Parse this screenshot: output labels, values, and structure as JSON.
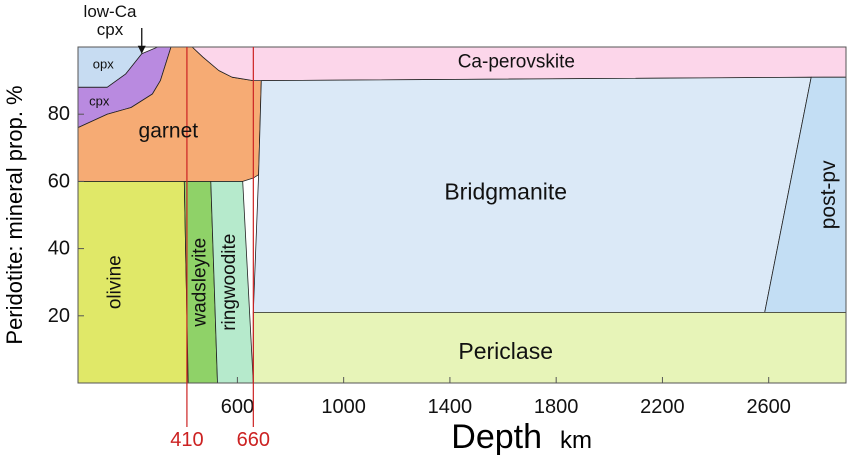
{
  "chart_data": {
    "type": "area",
    "title": "",
    "xlabel": "Depth",
    "xlabel_unit": "km",
    "ylabel": "Peridotite: mineral prop. %",
    "xlim": [
      0,
      2891
    ],
    "ylim": [
      0,
      100
    ],
    "x_ticks": [
      600,
      1000,
      1400,
      1800,
      2200,
      2600
    ],
    "y_ticks": [
      20,
      40,
      60,
      80
    ],
    "grid": false,
    "discontinuities": [
      {
        "depth": 410,
        "label": "410",
        "color": "#cc2222"
      },
      {
        "depth": 660,
        "label": "660",
        "color": "#cc2222"
      }
    ],
    "phases": [
      {
        "name": "olivine",
        "color": "#e0e868",
        "polygon": [
          [
            0,
            0
          ],
          [
            0,
            60
          ],
          [
            400,
            60
          ],
          [
            415,
            0
          ]
        ],
        "label_at": [
          140,
          30
        ],
        "label_rotation": -90,
        "label_size": 19
      },
      {
        "name": "wadsleyite",
        "color": "#8fd268",
        "polygon": [
          [
            415,
            0
          ],
          [
            400,
            60
          ],
          [
            500,
            60
          ],
          [
            525,
            0
          ]
        ],
        "label_at": [
          460,
          30
        ],
        "label_rotation": -90,
        "label_size": 19
      },
      {
        "name": "ringwoodite",
        "color": "#b6eacc",
        "polygon": [
          [
            525,
            0
          ],
          [
            500,
            60
          ],
          [
            620,
            60
          ],
          [
            660,
            0
          ]
        ],
        "label_at": [
          570,
          30
        ],
        "label_rotation": -90,
        "label_size": 19
      },
      {
        "name": "opx",
        "color": "#c7dcf2",
        "polygon": [
          [
            0,
            88
          ],
          [
            0,
            100
          ],
          [
            240,
            100
          ],
          [
            240,
            98
          ],
          [
            180,
            92
          ],
          [
            110,
            88
          ]
        ],
        "label_at": [
          95,
          95
        ],
        "label_rotation": 0,
        "label_size": 13
      },
      {
        "name": "cpx",
        "color": "#b98ae0",
        "polygon": [
          [
            0,
            76
          ],
          [
            0,
            88
          ],
          [
            110,
            88
          ],
          [
            180,
            92
          ],
          [
            240,
            98
          ],
          [
            300,
            100
          ],
          [
            350,
            100
          ],
          [
            310,
            90
          ],
          [
            280,
            86
          ],
          [
            200,
            82
          ],
          [
            110,
            80
          ]
        ],
        "label_at": [
          80,
          84
        ],
        "label_rotation": 0,
        "label_size": 13
      },
      {
        "name": "garnet",
        "color": "#f6ab74",
        "polygon": [
          [
            0,
            60
          ],
          [
            0,
            76
          ],
          [
            110,
            80
          ],
          [
            200,
            82
          ],
          [
            280,
            86
          ],
          [
            310,
            90
          ],
          [
            350,
            100
          ],
          [
            430,
            100
          ],
          [
            470,
            97
          ],
          [
            530,
            93
          ],
          [
            580,
            91
          ],
          [
            660,
            90
          ],
          [
            690,
            90
          ],
          [
            680,
            62
          ],
          [
            660,
            61
          ],
          [
            620,
            60
          ]
        ],
        "label_at": [
          340,
          75
        ],
        "label_rotation": 0,
        "label_size": 21
      },
      {
        "name": "Ca-perovskite",
        "color": "#fcd6ea",
        "polygon": [
          [
            430,
            100
          ],
          [
            470,
            97
          ],
          [
            530,
            93
          ],
          [
            580,
            91
          ],
          [
            660,
            90
          ],
          [
            690,
            90
          ],
          [
            2891,
            91
          ],
          [
            2891,
            100
          ]
        ],
        "label_at": [
          1650,
          95.5
        ],
        "label_rotation": 0,
        "label_size": 19
      },
      {
        "name": "Bridgmanite",
        "color": "#dbe9f7",
        "polygon": [
          [
            660,
            21
          ],
          [
            680,
            62
          ],
          [
            690,
            90
          ],
          [
            2760,
            91
          ],
          [
            2585,
            21
          ]
        ],
        "label_at": [
          1610,
          57
        ],
        "label_rotation": 0,
        "label_size": 23
      },
      {
        "name": "post-pv",
        "color": "#c3def4",
        "polygon": [
          [
            2585,
            21
          ],
          [
            2760,
            91
          ],
          [
            2891,
            91
          ],
          [
            2891,
            21
          ]
        ],
        "label_at": [
          2825,
          56
        ],
        "label_rotation": -90,
        "label_size": 21
      },
      {
        "name": "Periclase",
        "color": "#e7f4b8",
        "polygon": [
          [
            660,
            0
          ],
          [
            660,
            21
          ],
          [
            2891,
            21
          ],
          [
            2891,
            0
          ]
        ],
        "label_at": [
          1610,
          9.5
        ],
        "label_rotation": 0,
        "label_size": 23
      }
    ],
    "annotations": [
      {
        "text_lines": [
          "low-Ca",
          "cpx"
        ],
        "points_to": "opx/cpx boundary",
        "arrow_tip": [
          240,
          98
        ]
      }
    ]
  }
}
